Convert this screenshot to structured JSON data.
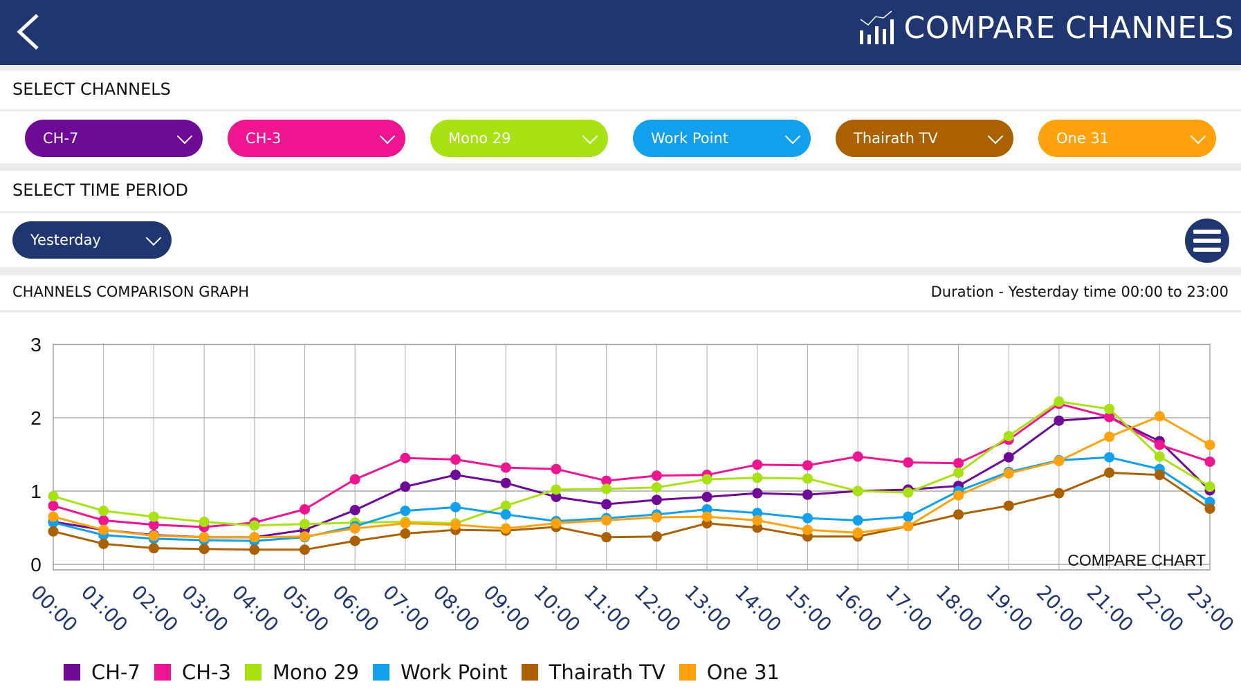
{
  "header": {
    "title": "COMPARE CHANNELS",
    "back_icon": "chevron-left-icon",
    "title_icon": "chart-icon"
  },
  "select_channels": {
    "label": "SELECT CHANNELS",
    "channels": [
      {
        "label": "CH-7",
        "color": "#6e0a96"
      },
      {
        "label": "CH-3",
        "color": "#ef1490"
      },
      {
        "label": "Mono 29",
        "color": "#a8e212"
      },
      {
        "label": "Work Point",
        "color": "#10a0ee"
      },
      {
        "label": "Thairath TV",
        "color": "#ac6100"
      },
      {
        "label": "One 31",
        "color": "#ffa20c"
      }
    ]
  },
  "time_period": {
    "label": "SELECT TIME PERIOD",
    "selected": "Yesterday"
  },
  "graph_section": {
    "title": "CHANNELS COMPARISON GRAPH",
    "duration": "Duration - Yesterday time 00:00 to 23:00"
  },
  "chart_data": {
    "type": "line",
    "watermark": "COMPARE CHART",
    "ylim": [
      0,
      3
    ],
    "yticks": [
      "0",
      "1",
      "2",
      "3"
    ],
    "categories": [
      "00:00",
      "01:00",
      "02:00",
      "03:00",
      "04:00",
      "05:00",
      "06:00",
      "07:00",
      "08:00",
      "09:00",
      "10:00",
      "11:00",
      "12:00",
      "13:00",
      "14:00",
      "15:00",
      "16:00",
      "17:00",
      "18:00",
      "19:00",
      "20:00",
      "21:00",
      "22:00",
      "23:00"
    ],
    "legend_position": "bottom-left",
    "series": [
      {
        "name": "CH-7",
        "color": "#6e0a96",
        "values": [
          0.58,
          0.47,
          0.4,
          0.37,
          0.37,
          0.47,
          0.74,
          1.06,
          1.22,
          1.11,
          0.92,
          0.82,
          0.88,
          0.92,
          0.97,
          0.95,
          1.0,
          1.02,
          1.07,
          1.46,
          1.96,
          2.01,
          1.68,
          1.01
        ]
      },
      {
        "name": "CH-3",
        "color": "#ef1490",
        "values": [
          0.8,
          0.6,
          0.54,
          0.51,
          0.57,
          0.75,
          1.16,
          1.45,
          1.43,
          1.32,
          1.3,
          1.14,
          1.21,
          1.22,
          1.36,
          1.35,
          1.47,
          1.39,
          1.38,
          1.7,
          2.19,
          2.01,
          1.63,
          1.4
        ]
      },
      {
        "name": "Mono 29",
        "color": "#a8e212",
        "values": [
          0.93,
          0.73,
          0.65,
          0.58,
          0.53,
          0.55,
          0.57,
          0.58,
          0.56,
          0.8,
          1.02,
          1.03,
          1.05,
          1.16,
          1.18,
          1.17,
          1.0,
          0.98,
          1.25,
          1.75,
          2.22,
          2.12,
          1.47,
          1.06
        ]
      },
      {
        "name": "Work Point",
        "color": "#10a0ee",
        "values": [
          0.57,
          0.4,
          0.35,
          0.33,
          0.32,
          0.37,
          0.52,
          0.73,
          0.78,
          0.68,
          0.59,
          0.63,
          0.68,
          0.75,
          0.7,
          0.63,
          0.6,
          0.65,
          1.0,
          1.26,
          1.42,
          1.46,
          1.3,
          0.85
        ]
      },
      {
        "name": "Thairath TV",
        "color": "#ac6100",
        "values": [
          0.45,
          0.28,
          0.22,
          0.21,
          0.2,
          0.2,
          0.32,
          0.42,
          0.47,
          0.46,
          0.51,
          0.37,
          0.38,
          0.56,
          0.5,
          0.38,
          0.38,
          0.52,
          0.68,
          0.8,
          0.97,
          1.25,
          1.22,
          0.76
        ]
      },
      {
        "name": "One 31",
        "color": "#ffa20c",
        "values": [
          0.65,
          0.47,
          0.39,
          0.37,
          0.37,
          0.38,
          0.49,
          0.56,
          0.54,
          0.49,
          0.56,
          0.6,
          0.64,
          0.65,
          0.6,
          0.47,
          0.43,
          0.52,
          0.94,
          1.24,
          1.41,
          1.74,
          2.02,
          1.63
        ]
      }
    ]
  }
}
